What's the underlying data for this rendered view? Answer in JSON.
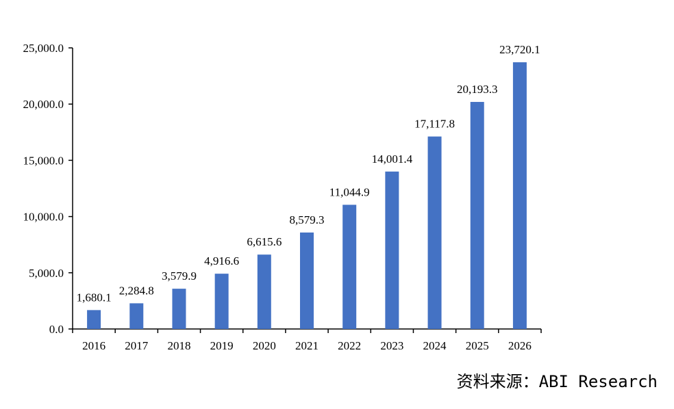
{
  "chart_data": {
    "type": "bar",
    "categories": [
      "2016",
      "2017",
      "2018",
      "2019",
      "2020",
      "2021",
      "2022",
      "2023",
      "2024",
      "2025",
      "2026"
    ],
    "values": [
      1680.1,
      2284.8,
      3579.9,
      4916.6,
      6615.6,
      8579.3,
      11044.9,
      14001.4,
      17117.8,
      20193.3,
      23720.1
    ],
    "data_labels": [
      "1,680.1",
      "2,284.8",
      "3,579.9",
      "4,916.6",
      "6,615.6",
      "8,579.3",
      "11,044.9",
      "14,001.4",
      "17,117.8",
      "20,193.3",
      "23,720.1"
    ],
    "yticks": [
      0,
      5000,
      10000,
      15000,
      20000,
      25000
    ],
    "ytick_labels": [
      "0.0",
      "5,000.0",
      "10,000.0",
      "15,000.0",
      "20,000.0",
      "25,000.0"
    ],
    "ylim": [
      0,
      25000
    ],
    "title": "",
    "xlabel": "",
    "ylabel": "",
    "grid": false,
    "legend": "none",
    "bar_color": "#4472C4"
  },
  "source_note": "资料来源：ABI Research"
}
